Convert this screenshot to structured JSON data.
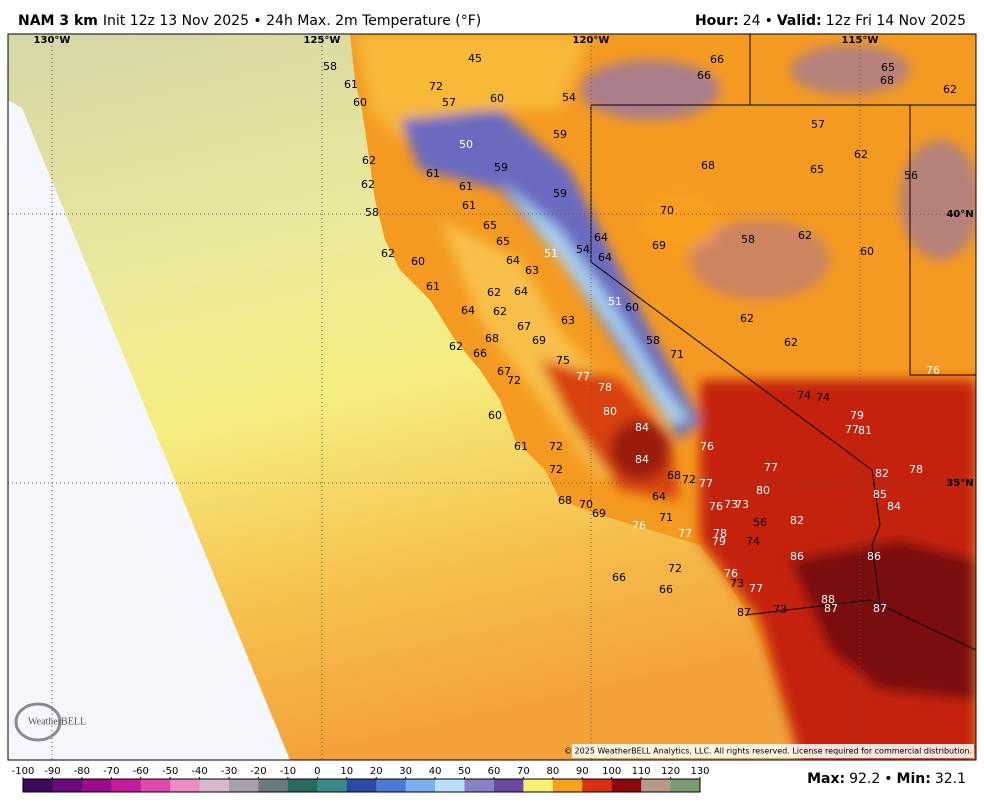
{
  "header": {
    "model": "NAM 3 km",
    "description": "Init 12z 13 Nov 2025 • 24h Max. 2m Temperature (°F)",
    "hour_label": "Hour:",
    "hour": "24",
    "separator": "•",
    "valid_label": "Valid:",
    "valid": "12z Fri 14 Nov 2025"
  },
  "map": {
    "longitude_labels": [
      "130°W",
      "125°W",
      "120°W",
      "115°W"
    ],
    "latitude_labels": [
      "40°N",
      "35°N"
    ],
    "temperature_labels": [
      58,
      61,
      60,
      72,
      57,
      45,
      60,
      54,
      66,
      66,
      65,
      68,
      62,
      59,
      50,
      57,
      62,
      68,
      65,
      56,
      62,
      62,
      61,
      59,
      61,
      59,
      58,
      61,
      70,
      65,
      65,
      64,
      69,
      58,
      62,
      62,
      60,
      64,
      51,
      54,
      64,
      63,
      60,
      61,
      62,
      64,
      64,
      62,
      51,
      60,
      67,
      63,
      62,
      68,
      69,
      58,
      71,
      62,
      62,
      66,
      75,
      67,
      72,
      77,
      78,
      76,
      74,
      74,
      80,
      79,
      77,
      81,
      60,
      84,
      76,
      61,
      72,
      84,
      77,
      82,
      78,
      72,
      68,
      72,
      77,
      80,
      85,
      84,
      64,
      68,
      70,
      76,
      73,
      73,
      69,
      71,
      76,
      56,
      82,
      77,
      78,
      79,
      74,
      86,
      86,
      72,
      76,
      73,
      77,
      66,
      66,
      88,
      87,
      87,
      87,
      73
    ],
    "copyright": "© 2025 WeatherBELL Analytics, LLC. All rights reserved. License required for commercial distribution.",
    "logo": "WeatherBELL"
  },
  "colorbar": {
    "ticks": [
      -100,
      -90,
      -80,
      -70,
      -60,
      -50,
      -40,
      -30,
      -20,
      -10,
      0,
      10,
      20,
      30,
      40,
      50,
      60,
      70,
      80,
      90,
      100,
      110,
      120,
      130
    ],
    "colors": [
      "#3c0a5c",
      "#6a0a7a",
      "#9a0c8c",
      "#c41a9c",
      "#e04aae",
      "#f08cc4",
      "#d8b8d0",
      "#a8a0a8",
      "#6a7a78",
      "#2a6a5a",
      "#3a8a8a",
      "#2a4aa8",
      "#4a7ad8",
      "#7ab0f0",
      "#b8e0f8",
      "#8a80c8",
      "#6a4aa0",
      "#f8f070",
      "#f8a020",
      "#d83010",
      "#8a0a0a",
      "#b89a88",
      "#7a9a70",
      "#1a7a4a"
    ]
  },
  "footer": {
    "max_label": "Max:",
    "max": "92.2",
    "separator": "•",
    "min_label": "Min:",
    "min": "32.1"
  }
}
